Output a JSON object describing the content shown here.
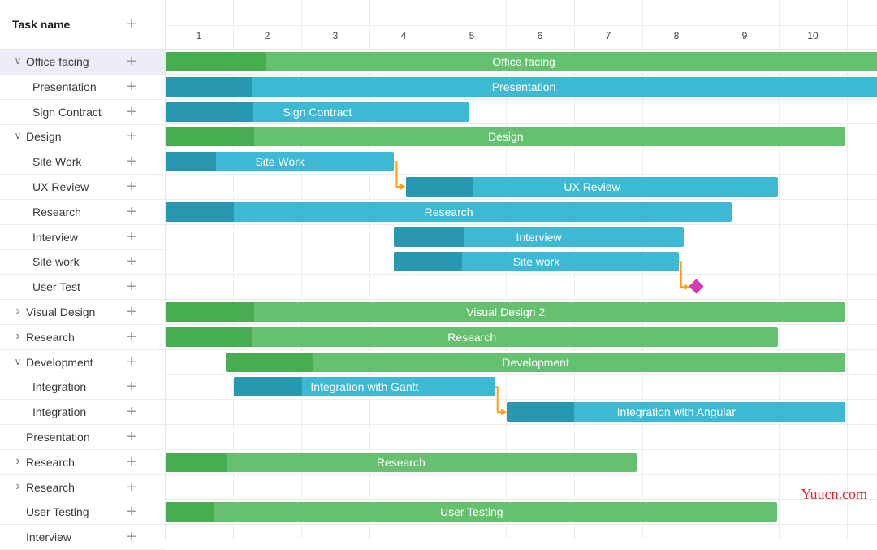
{
  "grid": {
    "header": {
      "task_name": "Task name"
    },
    "rows": [
      {
        "label": "Office facing",
        "level": 0,
        "expander": "expanded",
        "selected": true
      },
      {
        "label": "Presentation",
        "level": 1,
        "expander": "none"
      },
      {
        "label": "Sign Contract",
        "level": 1,
        "expander": "none"
      },
      {
        "label": "Design",
        "level": 0,
        "expander": "expanded"
      },
      {
        "label": "Site Work",
        "level": 1,
        "expander": "none"
      },
      {
        "label": "UX Review",
        "level": 1,
        "expander": "none"
      },
      {
        "label": "Research",
        "level": 1,
        "expander": "none"
      },
      {
        "label": "Interview",
        "level": 1,
        "expander": "none"
      },
      {
        "label": "Site work",
        "level": 1,
        "expander": "none"
      },
      {
        "label": "User Test",
        "level": 1,
        "expander": "none"
      },
      {
        "label": "Visual Design",
        "level": 0,
        "expander": "collapsed"
      },
      {
        "label": "Research",
        "level": 0,
        "expander": "collapsed"
      },
      {
        "label": "Development",
        "level": 0,
        "expander": "expanded"
      },
      {
        "label": "Integration",
        "level": 1,
        "expander": "none"
      },
      {
        "label": "Integration",
        "level": 1,
        "expander": "none"
      },
      {
        "label": "Presentation",
        "level": 0,
        "expander": "none"
      },
      {
        "label": "Research",
        "level": 0,
        "expander": "collapsed"
      },
      {
        "label": "Research",
        "level": 0,
        "expander": "collapsed"
      },
      {
        "label": "User Testing",
        "level": 0,
        "expander": "none"
      },
      {
        "label": "Interview",
        "level": 0,
        "expander": "none"
      }
    ]
  },
  "scale": {
    "days": [
      "1",
      "2",
      "3",
      "4",
      "5",
      "6",
      "7",
      "8",
      "9",
      "10"
    ]
  },
  "colors": {
    "project": "#65c16f",
    "project_progress": "#46ad51",
    "task": "#3db9d3",
    "task_progress": "#2898b0",
    "milestone": "#d33daf",
    "link": "#ffa011"
  },
  "bars": [
    {
      "row": 0,
      "type": "project",
      "text": "Office facing",
      "start": 0,
      "duration": 10.5,
      "progress": 0.14
    },
    {
      "row": 1,
      "type": "task",
      "text": "Presentation",
      "start": 0,
      "duration": 10.5,
      "progress": 0.12
    },
    {
      "row": 2,
      "type": "task",
      "text": "Sign Contract",
      "start": 0,
      "duration": 4.45,
      "progress": 0.29
    },
    {
      "row": 3,
      "type": "project",
      "text": "Design",
      "start": 0,
      "duration": 9.97,
      "progress": 0.13
    },
    {
      "row": 4,
      "type": "task",
      "text": "Site Work",
      "start": 0,
      "duration": 3.35,
      "progress": 0.22
    },
    {
      "row": 5,
      "type": "task",
      "text": "UX Review",
      "start": 3.52,
      "duration": 5.46,
      "progress": 0.18
    },
    {
      "row": 6,
      "type": "task",
      "text": "Research",
      "start": 0,
      "duration": 8.3,
      "progress": 0.12
    },
    {
      "row": 7,
      "type": "task",
      "text": "Interview",
      "start": 3.35,
      "duration": 4.24,
      "progress": 0.24
    },
    {
      "row": 8,
      "type": "task",
      "text": "Site work",
      "start": 3.35,
      "duration": 4.17,
      "progress": 0.24
    },
    {
      "row": 10,
      "type": "project",
      "text": "Visual Design 2",
      "start": 0,
      "duration": 9.97,
      "progress": 0.13
    },
    {
      "row": 11,
      "type": "project",
      "text": "Research",
      "start": 0,
      "duration": 8.98,
      "progress": 0.14
    },
    {
      "row": 12,
      "type": "project",
      "text": "Development",
      "start": 0.88,
      "duration": 9.09,
      "progress": 0.14
    },
    {
      "row": 13,
      "type": "task",
      "text": "Integration with Gantt",
      "start": 1.0,
      "duration": 3.83,
      "progress": 0.26
    },
    {
      "row": 14,
      "type": "task",
      "text": "Integration with Angular",
      "start": 5.0,
      "duration": 4.97,
      "progress": 0.2
    },
    {
      "row": 16,
      "type": "project",
      "text": "Research",
      "start": 0,
      "duration": 6.9,
      "progress": 0.13
    },
    {
      "row": 18,
      "type": "project",
      "text": "User Testing",
      "start": 0,
      "duration": 8.97,
      "progress": 0.08
    }
  ],
  "milestones": [
    {
      "row": 9,
      "at": 7.72
    }
  ],
  "links": [
    {
      "from_row": 4,
      "to_row": 5
    },
    {
      "from_row": 8,
      "to_row": 9
    },
    {
      "from_row": 13,
      "to_row": 14
    }
  ],
  "watermark": "Yuucn.com"
}
